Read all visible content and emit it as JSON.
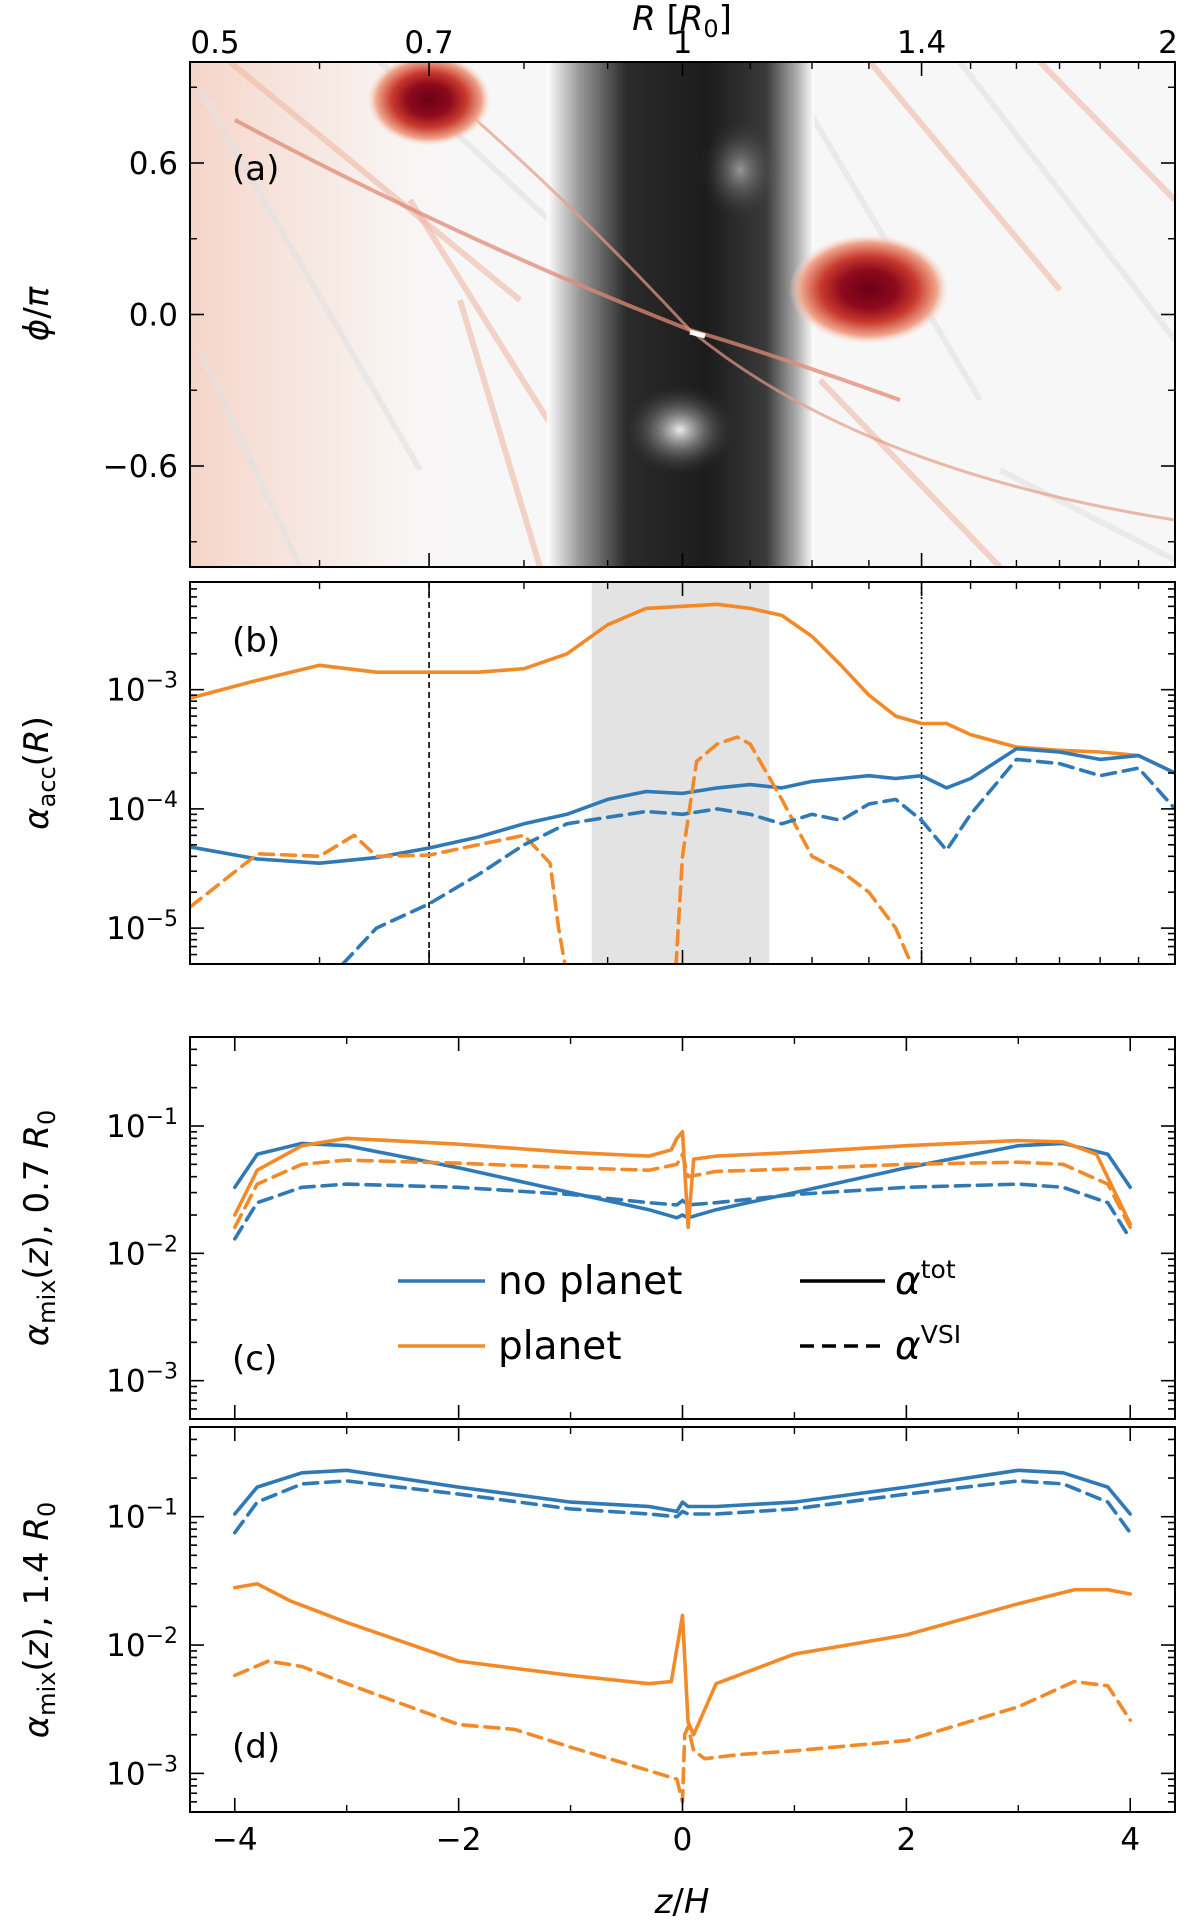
{
  "colors": {
    "blue": "#2f7ab6",
    "orange": "#f28a2a",
    "shade": "#e3e3e3",
    "map_red_dark": "#6b0015",
    "map_red_light": "#f6d3c6",
    "map_gray_dark": "#1c1c1c"
  },
  "panel_a": {
    "label": "(a)",
    "xlabel": "R [R₀]",
    "ylabel": "ϕ/π",
    "x_tick_labels": [
      "0.5",
      "0.7",
      "1",
      "1.4",
      "2"
    ],
    "y_tick_labels": [
      "0.6",
      "0.0",
      "−0.6"
    ],
    "colormap": "red-white-gray",
    "vortices_R": [
      0.7,
      1.3
    ]
  },
  "panel_b": {
    "label": "(b)",
    "ylabel": "αacc(R)",
    "y_tick_labels": [
      "10⁻³",
      "10⁻⁴",
      "10⁻⁵"
    ]
  },
  "panel_c": {
    "label": "(c)",
    "ylabel": "αmix(z), 0.7 R₀",
    "y_tick_labels": [
      "10⁻¹",
      "10⁻²",
      "10⁻³"
    ]
  },
  "panel_d": {
    "label": "(d)",
    "ylabel": "αmix(z), 1.4 R₀",
    "y_tick_labels": [
      "10⁻¹",
      "10⁻²",
      "10⁻³"
    ]
  },
  "bottom_axis": {
    "xlabel": "z/H",
    "x_tick_labels": [
      "−4",
      "−2",
      "0",
      "2",
      "4"
    ]
  },
  "legend": {
    "no_planet": "no planet",
    "planet": "planet",
    "tot": "αtot",
    "vsi": "αVSI"
  },
  "chart_data": [
    {
      "panel": "a",
      "type": "heatmap",
      "xlim": [
        0.5,
        2.0
      ],
      "ylim": [
        -1.0,
        1.0
      ],
      "x_scale": "log",
      "x_ticks": [
        0.5,
        0.7,
        1,
        1.4,
        2
      ],
      "y_ticks": [
        0.6,
        0.0,
        -0.6
      ],
      "features": [
        {
          "kind": "vortex",
          "R": 0.7,
          "phi_over_pi": 0.85
        },
        {
          "kind": "vortex",
          "R": 1.3,
          "phi_over_pi": 0.1
        },
        {
          "kind": "gap",
          "R_range": [
            0.88,
            1.13
          ]
        }
      ]
    },
    {
      "panel": "b",
      "type": "line",
      "x_scale": "log",
      "y_scale": "log",
      "xlim": [
        0.5,
        2.0
      ],
      "ylim": [
        5e-06,
        0.008
      ],
      "shaded_x_range": [
        0.88,
        1.13
      ],
      "vlines": [
        {
          "x": 0.7,
          "style": "dashed"
        },
        {
          "x": 1.4,
          "style": "dotted"
        }
      ],
      "series": [
        {
          "name": "planet, αtot",
          "color": "orange",
          "dash": "solid",
          "x": [
            0.5,
            0.55,
            0.6,
            0.65,
            0.7,
            0.75,
            0.8,
            0.85,
            0.9,
            0.95,
            1.0,
            1.05,
            1.1,
            1.15,
            1.2,
            1.25,
            1.3,
            1.35,
            1.4,
            1.45,
            1.5,
            1.6,
            1.7,
            1.8,
            1.9,
            2.0
          ],
          "y": [
            0.00085,
            0.0012,
            0.0016,
            0.0014,
            0.0014,
            0.0014,
            0.0015,
            0.002,
            0.0035,
            0.0048,
            0.005,
            0.0052,
            0.0048,
            0.0042,
            0.0028,
            0.0016,
            0.0009,
            0.0006,
            0.00052,
            0.00052,
            0.00042,
            0.00033,
            0.00031,
            0.0003,
            0.00028,
            0.0002
          ]
        },
        {
          "name": "no planet, αtot",
          "color": "blue",
          "dash": "solid",
          "x": [
            0.5,
            0.55,
            0.6,
            0.65,
            0.7,
            0.75,
            0.8,
            0.85,
            0.9,
            0.95,
            1.0,
            1.05,
            1.1,
            1.15,
            1.2,
            1.25,
            1.3,
            1.35,
            1.4,
            1.45,
            1.5,
            1.6,
            1.7,
            1.8,
            1.9,
            2.0
          ],
          "y": [
            4.8e-05,
            3.8e-05,
            3.5e-05,
            3.9e-05,
            4.7e-05,
            5.8e-05,
            7.5e-05,
            9e-05,
            0.00012,
            0.00014,
            0.000135,
            0.00015,
            0.00016,
            0.00015,
            0.00017,
            0.00018,
            0.00019,
            0.00018,
            0.00019,
            0.00015,
            0.00018,
            0.00032,
            0.0003,
            0.00026,
            0.00028,
            0.0002
          ]
        },
        {
          "name": "planet, αVSI",
          "color": "orange",
          "dash": "dashed",
          "x": [
            0.5,
            0.55,
            0.6,
            0.63,
            0.65,
            0.7,
            0.75,
            0.8,
            0.83,
            0.84,
            0.85,
            0.99,
            1.0,
            1.02,
            1.05,
            1.08,
            1.1,
            1.15,
            1.2,
            1.25,
            1.3,
            1.35,
            1.38
          ],
          "y": [
            1.5e-05,
            4.2e-05,
            4e-05,
            6e-05,
            4e-05,
            4.1e-05,
            5e-05,
            6e-05,
            3.5e-05,
            1e-05,
            4e-06,
            4e-06,
            4e-05,
            0.00025,
            0.00035,
            0.0004,
            0.00035,
            0.00012,
            4e-05,
            3e-05,
            2e-05,
            1e-05,
            5e-06
          ]
        },
        {
          "name": "no planet, αVSI",
          "color": "blue",
          "dash": "dashed",
          "x": [
            0.62,
            0.65,
            0.7,
            0.75,
            0.8,
            0.85,
            0.9,
            0.95,
            1.0,
            1.05,
            1.1,
            1.15,
            1.2,
            1.25,
            1.3,
            1.35,
            1.4,
            1.45,
            1.5,
            1.6,
            1.7,
            1.8,
            1.9,
            2.0
          ],
          "y": [
            5e-06,
            1e-05,
            1.6e-05,
            2.8e-05,
            5e-05,
            7.5e-05,
            8.5e-05,
            9.5e-05,
            9e-05,
            0.0001,
            9e-05,
            7.5e-05,
            9e-05,
            8e-05,
            0.00011,
            0.00012,
            8e-05,
            4.5e-05,
            9e-05,
            0.00026,
            0.00024,
            0.00019,
            0.00022,
            0.0001
          ]
        }
      ]
    },
    {
      "panel": "c",
      "type": "line",
      "y_scale": "log",
      "xlim": [
        -4.4,
        4.4
      ],
      "ylim": [
        0.0005,
        0.5
      ],
      "series": [
        {
          "name": "no planet, αtot",
          "color": "blue",
          "dash": "solid",
          "x": [
            -4.0,
            -3.8,
            -3.4,
            -3.0,
            -2.0,
            -1.0,
            -0.3,
            -0.05,
            0.0,
            0.05,
            0.3,
            1.0,
            2.0,
            3.0,
            3.4,
            3.8,
            4.0
          ],
          "y": [
            0.033,
            0.06,
            0.073,
            0.07,
            0.047,
            0.03,
            0.022,
            0.019,
            0.02,
            0.019,
            0.022,
            0.03,
            0.047,
            0.07,
            0.073,
            0.06,
            0.033
          ]
        },
        {
          "name": "no planet, αVSI",
          "color": "blue",
          "dash": "dashed",
          "x": [
            -4.0,
            -3.8,
            -3.4,
            -3.0,
            -2.0,
            -1.0,
            -0.3,
            -0.05,
            0.0,
            0.05,
            0.3,
            1.0,
            2.0,
            3.0,
            3.4,
            3.8,
            4.0
          ],
          "y": [
            0.013,
            0.025,
            0.033,
            0.035,
            0.033,
            0.029,
            0.025,
            0.024,
            0.026,
            0.024,
            0.025,
            0.029,
            0.033,
            0.035,
            0.033,
            0.025,
            0.013
          ]
        },
        {
          "name": "planet, αtot",
          "color": "orange",
          "dash": "solid",
          "x": [
            -4.0,
            -3.8,
            -3.4,
            -3.0,
            -2.0,
            -1.0,
            -0.3,
            -0.1,
            -0.05,
            0.0,
            0.05,
            0.1,
            0.3,
            1.0,
            2.0,
            3.0,
            3.4,
            3.7,
            4.0
          ],
          "y": [
            0.02,
            0.045,
            0.07,
            0.08,
            0.072,
            0.062,
            0.058,
            0.065,
            0.08,
            0.09,
            0.016,
            0.055,
            0.058,
            0.062,
            0.07,
            0.077,
            0.075,
            0.06,
            0.017
          ]
        },
        {
          "name": "planet, αVSI",
          "color": "orange",
          "dash": "dashed",
          "x": [
            -4.0,
            -3.8,
            -3.4,
            -3.0,
            -2.0,
            -1.0,
            -0.3,
            -0.05,
            0.0,
            0.05,
            0.3,
            1.0,
            2.0,
            3.0,
            3.4,
            3.8,
            4.0
          ],
          "y": [
            0.016,
            0.035,
            0.05,
            0.054,
            0.051,
            0.047,
            0.045,
            0.05,
            0.06,
            0.04,
            0.044,
            0.046,
            0.05,
            0.052,
            0.05,
            0.035,
            0.016
          ]
        }
      ]
    },
    {
      "panel": "d",
      "type": "line",
      "y_scale": "log",
      "xlim": [
        -4.4,
        4.4
      ],
      "ylim": [
        0.0005,
        0.5
      ],
      "series": [
        {
          "name": "no planet, αtot",
          "color": "blue",
          "dash": "solid",
          "x": [
            -4.0,
            -3.8,
            -3.4,
            -3.0,
            -2.0,
            -1.0,
            -0.3,
            -0.05,
            0.0,
            0.05,
            0.3,
            1.0,
            2.0,
            3.0,
            3.4,
            3.8,
            4.0
          ],
          "y": [
            0.105,
            0.17,
            0.22,
            0.23,
            0.17,
            0.13,
            0.12,
            0.11,
            0.13,
            0.12,
            0.12,
            0.13,
            0.17,
            0.23,
            0.22,
            0.17,
            0.105
          ]
        },
        {
          "name": "no planet, αVSI",
          "color": "blue",
          "dash": "dashed",
          "x": [
            -4.0,
            -3.8,
            -3.4,
            -3.0,
            -2.0,
            -1.0,
            -0.3,
            -0.05,
            0.0,
            0.05,
            0.3,
            1.0,
            2.0,
            3.0,
            3.4,
            3.8,
            4.0
          ],
          "y": [
            0.075,
            0.13,
            0.18,
            0.19,
            0.15,
            0.115,
            0.105,
            0.1,
            0.11,
            0.105,
            0.105,
            0.115,
            0.15,
            0.19,
            0.18,
            0.13,
            0.075
          ]
        },
        {
          "name": "planet, αtot",
          "color": "orange",
          "dash": "solid",
          "x": [
            -4.0,
            -3.8,
            -3.5,
            -3.0,
            -2.0,
            -1.0,
            -0.3,
            -0.1,
            0.0,
            0.05,
            0.1,
            0.3,
            1.0,
            2.0,
            3.0,
            3.5,
            3.8,
            4.0
          ],
          "y": [
            0.028,
            0.03,
            0.022,
            0.015,
            0.0075,
            0.0058,
            0.005,
            0.0052,
            0.017,
            0.0025,
            0.002,
            0.005,
            0.0085,
            0.012,
            0.021,
            0.027,
            0.027,
            0.025
          ]
        },
        {
          "name": "planet, αVSI",
          "color": "orange",
          "dash": "dashed",
          "x": [
            -4.0,
            -3.7,
            -3.4,
            -3.0,
            -2.0,
            -1.5,
            -1.0,
            -0.3,
            -0.05,
            0.0,
            0.02,
            0.05,
            0.1,
            0.2,
            0.5,
            1.0,
            2.0,
            3.0,
            3.5,
            3.8,
            4.0
          ],
          "y": [
            0.0058,
            0.0075,
            0.0068,
            0.005,
            0.0024,
            0.0022,
            0.0016,
            0.00105,
            0.0009,
            0.0006,
            0.002,
            0.0023,
            0.0015,
            0.0013,
            0.0014,
            0.0015,
            0.0018,
            0.0033,
            0.0052,
            0.0048,
            0.0026
          ]
        }
      ]
    }
  ]
}
